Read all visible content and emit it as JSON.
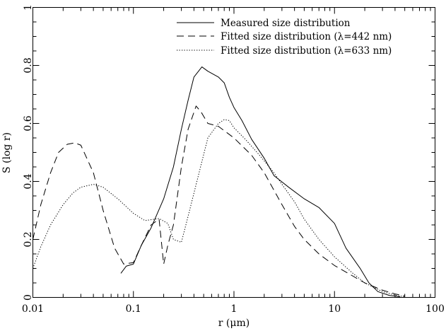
{
  "chart_data": {
    "type": "line",
    "xlabel": "r (μm)",
    "ylabel": "S (log r)",
    "xscale": "log",
    "xlim": [
      0.01,
      100
    ],
    "ylim": [
      0,
      1
    ],
    "x_ticks": [
      {
        "value": 0.01,
        "label": "0.01"
      },
      {
        "value": 0.1,
        "label": "0.1"
      },
      {
        "value": 1,
        "label": "1"
      },
      {
        "value": 10,
        "label": "10"
      },
      {
        "value": 100,
        "label": "100"
      }
    ],
    "y_ticks": [
      {
        "value": 0,
        "label": "0"
      },
      {
        "value": 0.2,
        "label": "0.2"
      },
      {
        "value": 0.4,
        "label": "0.4"
      },
      {
        "value": 0.6,
        "label": "0.6"
      },
      {
        "value": 0.8,
        "label": "0.8"
      },
      {
        "value": 1,
        "label": "1"
      }
    ],
    "grid": false,
    "legend_position": "top-right",
    "series": [
      {
        "name": "Measured size distribution",
        "style": "solid",
        "points": [
          [
            0.075,
            0.083
          ],
          [
            0.085,
            0.108
          ],
          [
            0.1,
            0.115
          ],
          [
            0.12,
            0.18
          ],
          [
            0.15,
            0.24
          ],
          [
            0.2,
            0.34
          ],
          [
            0.25,
            0.45
          ],
          [
            0.3,
            0.58
          ],
          [
            0.35,
            0.68
          ],
          [
            0.4,
            0.76
          ],
          [
            0.48,
            0.795
          ],
          [
            0.55,
            0.78
          ],
          [
            0.7,
            0.76
          ],
          [
            0.8,
            0.74
          ],
          [
            0.9,
            0.69
          ],
          [
            1.0,
            0.655
          ],
          [
            1.2,
            0.61
          ],
          [
            1.5,
            0.545
          ],
          [
            2.0,
            0.48
          ],
          [
            2.5,
            0.42
          ],
          [
            3.5,
            0.38
          ],
          [
            5.0,
            0.34
          ],
          [
            7.0,
            0.31
          ],
          [
            10.0,
            0.255
          ],
          [
            13.0,
            0.17
          ],
          [
            18.0,
            0.1
          ],
          [
            22.0,
            0.05
          ],
          [
            27.0,
            0.02
          ],
          [
            35.0,
            0.007
          ],
          [
            45.0,
            0.002
          ]
        ]
      },
      {
        "name": "Fitted size distribution (λ=442 nm)",
        "style": "dashed",
        "points": [
          [
            0.01,
            0.2
          ],
          [
            0.012,
            0.32
          ],
          [
            0.015,
            0.43
          ],
          [
            0.018,
            0.5
          ],
          [
            0.022,
            0.528
          ],
          [
            0.026,
            0.533
          ],
          [
            0.03,
            0.525
          ],
          [
            0.04,
            0.43
          ],
          [
            0.05,
            0.3
          ],
          [
            0.065,
            0.17
          ],
          [
            0.08,
            0.115
          ],
          [
            0.1,
            0.12
          ],
          [
            0.12,
            0.18
          ],
          [
            0.15,
            0.25
          ],
          [
            0.18,
            0.27
          ],
          [
            0.2,
            0.115
          ],
          [
            0.22,
            0.18
          ],
          [
            0.25,
            0.25
          ],
          [
            0.3,
            0.45
          ],
          [
            0.35,
            0.58
          ],
          [
            0.42,
            0.66
          ],
          [
            0.47,
            0.64
          ],
          [
            0.55,
            0.6
          ],
          [
            0.7,
            0.59
          ],
          [
            1.0,
            0.55
          ],
          [
            1.5,
            0.49
          ],
          [
            2.0,
            0.43
          ],
          [
            3.0,
            0.32
          ],
          [
            4.0,
            0.245
          ],
          [
            5.0,
            0.2
          ],
          [
            7.0,
            0.15
          ],
          [
            10.0,
            0.11
          ],
          [
            15.0,
            0.075
          ],
          [
            20.0,
            0.05
          ],
          [
            30.0,
            0.025
          ],
          [
            40.0,
            0.012
          ],
          [
            50.0,
            0.005
          ]
        ]
      },
      {
        "name": "Fitted size distribution (λ=633 nm)",
        "style": "dotted",
        "points": [
          [
            0.01,
            0.1
          ],
          [
            0.012,
            0.175
          ],
          [
            0.015,
            0.25
          ],
          [
            0.02,
            0.32
          ],
          [
            0.025,
            0.36
          ],
          [
            0.03,
            0.38
          ],
          [
            0.04,
            0.39
          ],
          [
            0.05,
            0.38
          ],
          [
            0.07,
            0.34
          ],
          [
            0.1,
            0.29
          ],
          [
            0.13,
            0.265
          ],
          [
            0.18,
            0.272
          ],
          [
            0.22,
            0.255
          ],
          [
            0.25,
            0.2
          ],
          [
            0.3,
            0.19
          ],
          [
            0.35,
            0.28
          ],
          [
            0.45,
            0.43
          ],
          [
            0.55,
            0.55
          ],
          [
            0.7,
            0.6
          ],
          [
            0.8,
            0.613
          ],
          [
            0.9,
            0.61
          ],
          [
            1.0,
            0.585
          ],
          [
            1.3,
            0.545
          ],
          [
            1.8,
            0.49
          ],
          [
            2.5,
            0.43
          ],
          [
            3.0,
            0.39
          ],
          [
            4.0,
            0.33
          ],
          [
            5.0,
            0.27
          ],
          [
            7.0,
            0.2
          ],
          [
            10.0,
            0.14
          ],
          [
            15.0,
            0.085
          ],
          [
            20.0,
            0.05
          ],
          [
            30.0,
            0.02
          ],
          [
            40.0,
            0.008
          ],
          [
            50.0,
            0.002
          ]
        ]
      }
    ]
  }
}
